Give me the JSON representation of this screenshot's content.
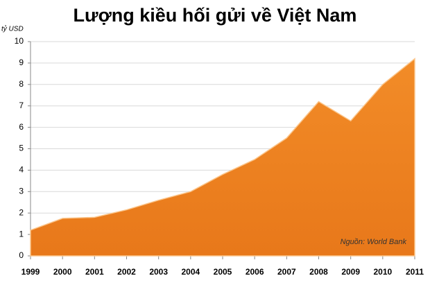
{
  "chart_data": {
    "type": "area",
    "title": "Lượng kiều hối gửi về Việt Nam",
    "y_label": "tỷ USD",
    "annotation": "Nguồn: World Bank",
    "x": [
      1999,
      2000,
      2001,
      2002,
      2003,
      2004,
      2005,
      2006,
      2007,
      2008,
      2009,
      2010,
      2011
    ],
    "values": [
      1.2,
      1.75,
      1.8,
      2.15,
      2.6,
      3.0,
      3.8,
      4.5,
      5.5,
      7.2,
      6.3,
      8.0,
      9.2
    ],
    "color": "#f28c28",
    "xlim": [
      1999,
      2011
    ],
    "ylim": [
      0,
      10
    ],
    "yticks": [
      0,
      1,
      2,
      3,
      4,
      5,
      6,
      7,
      8,
      9,
      10
    ],
    "grid": true
  }
}
